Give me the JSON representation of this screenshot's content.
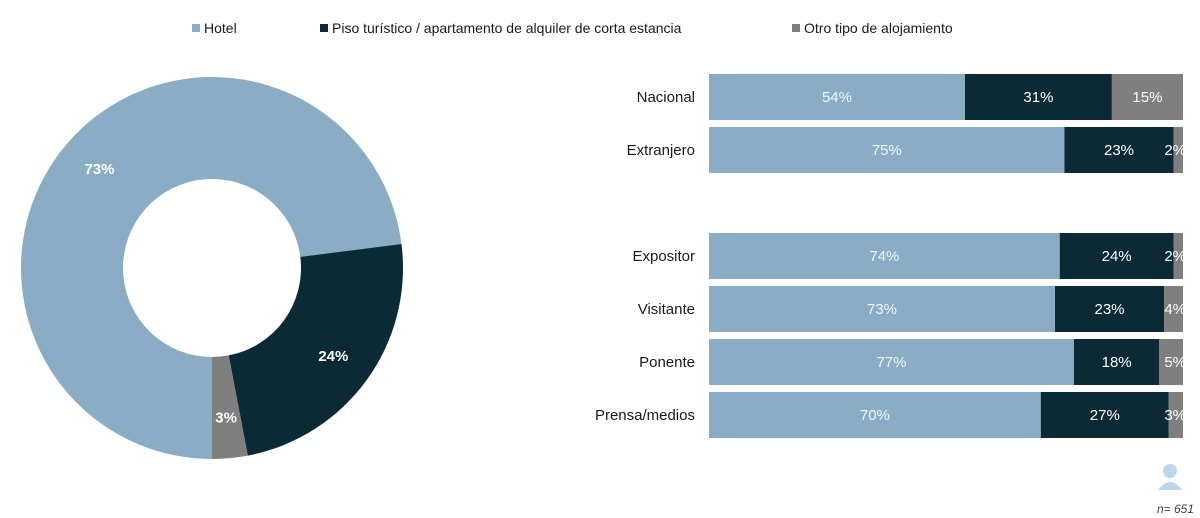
{
  "legend": [
    {
      "label": "Hotel",
      "color": "#8aacc4"
    },
    {
      "label": "Piso turístico / apartamento de alquiler de corta estancia",
      "color": "#0b2a36"
    },
    {
      "label": "Otro tipo de alojamiento",
      "color": "#7f7f7f"
    }
  ],
  "footer": {
    "n_label": "n= 651"
  },
  "colors": {
    "hotel": "#8aacc4",
    "piso": "#0b2a36",
    "otro": "#7f7f7f"
  },
  "chart_data": [
    {
      "type": "pie",
      "categories": [
        "Hotel",
        "Piso turístico / apartamento de alquiler de corta estancia",
        "Otro tipo de alojamiento"
      ],
      "values": [
        73,
        24,
        3
      ],
      "labels": [
        "73%",
        "24%",
        "3%"
      ]
    },
    {
      "type": "bar",
      "orientation": "horizontal",
      "stacked": true,
      "categories": [
        "Nacional",
        "Extranjero",
        "Expositor",
        "Visitante",
        "Ponente",
        "Prensa/medios"
      ],
      "series": [
        {
          "name": "Hotel",
          "values": [
            54,
            75,
            74,
            73,
            77,
            70
          ]
        },
        {
          "name": "Piso turístico / apartamento de alquiler de corta estancia",
          "values": [
            31,
            23,
            24,
            23,
            18,
            27
          ]
        },
        {
          "name": "Otro tipo de alojamiento",
          "values": [
            15,
            2,
            2,
            4,
            5,
            3
          ]
        }
      ],
      "xlim": [
        0,
        100
      ]
    }
  ]
}
